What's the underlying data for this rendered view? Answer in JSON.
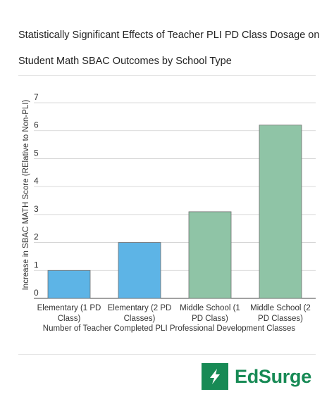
{
  "title_lines": [
    "Statistically Significant Effects of Teacher PLI PD Class Dosage on",
    "Student Math SBAC Outcomes by School Type"
  ],
  "brand": {
    "name": "EdSurge",
    "color": "#178a55",
    "icon": "lightning-bolt-icon"
  },
  "chart_data": {
    "type": "bar",
    "title": "Statistically Significant Effects of Teacher PLI PD Class Dosage on Student Math SBAC Outcomes by School Type",
    "xlabel": "Number of Teacher Completed PLI Professional Development Classes",
    "ylabel": "Increase in SBAC MATH Score (RElative to Non-PLI)",
    "ylim": [
      0,
      7
    ],
    "yticks": [
      0,
      1,
      2,
      3,
      4,
      5,
      6,
      7
    ],
    "grid": true,
    "categories": [
      [
        "Elementary (1 PD",
        "Class)"
      ],
      [
        "Elementary (2 PD",
        "Classes)"
      ],
      [
        "Middle School (1",
        "PD Class)"
      ],
      [
        "Middle School (2",
        "PD Classes)"
      ]
    ],
    "values": [
      1.0,
      2.0,
      3.1,
      6.2
    ],
    "colors": [
      "#5db4e6",
      "#5db4e6",
      "#8fc4a6",
      "#8fc4a6"
    ],
    "bar_stroke": "#6f6f6f"
  }
}
